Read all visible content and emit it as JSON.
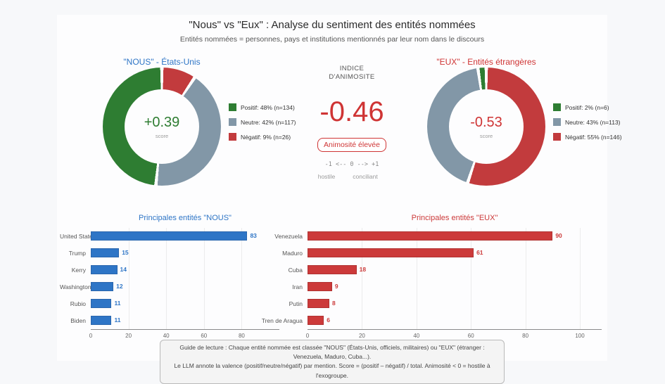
{
  "page": {
    "title": "\"Nous\" vs \"Eux\" : Analyse du sentiment des entités nommées",
    "subtitle": "Entités nommées = personnes, pays et institutions mentionnés par leur nom dans le discours",
    "background_color": "#f7f8fa",
    "card_color": "#fdfdfe"
  },
  "animosity_gauge": {
    "heading_line1": "INDICE",
    "heading_line2": "D'ANIMOSITE",
    "value": "-0.46",
    "value_color": "#cf3434",
    "badge_label": "Animosité élevée",
    "scale_text": "-1 <-- 0 --> +1",
    "scale_left_label": "hostile",
    "scale_right_label": "conciliant"
  },
  "chart_data": [
    {
      "type": "donut",
      "id": "nous",
      "title": "\"NOUS\" - États-Unis",
      "title_color": "#2e75c6",
      "center_value": "+0.39",
      "center_value_color": "#2e7d32",
      "center_label": "score",
      "slices": [
        {
          "label": "Positif",
          "pct": 48,
          "n": 134,
          "color": "#2e7d32",
          "legend_label": "Positif: 48% (n=134)"
        },
        {
          "label": "Neutre",
          "pct": 42,
          "n": 117,
          "color": "#8297a7",
          "legend_label": "Neutre: 42% (n=117)"
        },
        {
          "label": "Négatif",
          "pct": 9,
          "n": 26,
          "color": "#c23b3d",
          "legend_label": "Négatif: 9% (n=26)"
        }
      ],
      "draw_order_clockwise_from_top": [
        2,
        1,
        0
      ]
    },
    {
      "type": "donut",
      "id": "eux",
      "title": "\"EUX\" - Entités étrangères",
      "title_color": "#cf3434",
      "center_value": "-0.53",
      "center_value_color": "#cf3434",
      "center_label": "score",
      "slices": [
        {
          "label": "Positif",
          "pct": 2,
          "n": 6,
          "color": "#2e7d32",
          "legend_label": "Positif: 2% (n=6)"
        },
        {
          "label": "Neutre",
          "pct": 43,
          "n": 113,
          "color": "#8297a7",
          "legend_label": "Neutre: 43% (n=113)"
        },
        {
          "label": "Négatif",
          "pct": 55,
          "n": 146,
          "color": "#c23b3d",
          "legend_label": "Négatif: 55% (n=146)"
        }
      ],
      "draw_order_clockwise_from_top": [
        2,
        1,
        0
      ]
    },
    {
      "type": "bar",
      "orientation": "horizontal",
      "id": "nous_entities",
      "title": "Principales entités \"NOUS\"",
      "color": "#2e75c6",
      "border_color": "#2a66ad",
      "categories": [
        "United States",
        "Trump",
        "Kerry",
        "Washington",
        "Rubio",
        "Biden"
      ],
      "values": [
        83,
        15,
        14,
        12,
        11,
        11
      ],
      "xticks": [
        0,
        20,
        40,
        60,
        80
      ],
      "xmax": 100,
      "grid": true,
      "xlabel": "",
      "ylabel": ""
    },
    {
      "type": "bar",
      "orientation": "horizontal",
      "id": "eux_entities",
      "title": "Principales entités \"EUX\"",
      "color": "#cc3a3a",
      "border_color": "#b03232",
      "categories": [
        "Venezuela",
        "Maduro",
        "Cuba",
        "Iran",
        "Putin",
        "Tren de Aragua"
      ],
      "values": [
        90,
        61,
        18,
        9,
        8,
        6
      ],
      "xticks": [
        0,
        20,
        40,
        60,
        80,
        100
      ],
      "xmax": 108,
      "grid": true,
      "xlabel": "",
      "ylabel": ""
    }
  ],
  "footer_note": {
    "line1": "Guide de lecture : Chaque entité nommée est classée \"NOUS\" (États-Unis, officiels, militaires) ou \"EUX\" (étranger : Venezuela, Maduro, Cuba...).",
    "line2": "Le LLM annote la valence (positif/neutre/négatif) par mention. Score = (positif – négatif) / total. Animosité < 0 = hostile à l'exogroupe."
  }
}
